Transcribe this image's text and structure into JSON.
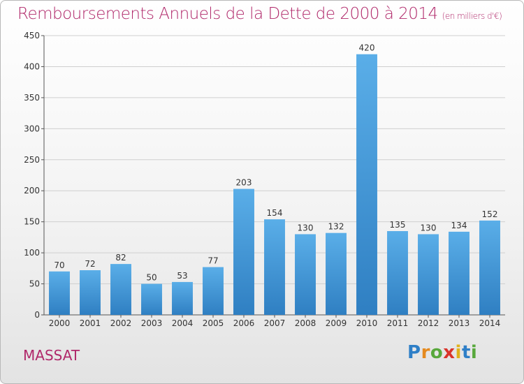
{
  "title": "Remboursements Annuels de la Dette de 2000 à 2014",
  "unit": "(en milliers d'€)",
  "commune": "MASSAT",
  "logo": {
    "letters": [
      "P",
      "r",
      "o",
      "x",
      "i",
      "t",
      "i"
    ],
    "colors": [
      "#2e7fc7",
      "#e58a1f",
      "#58a83c",
      "#d9342b",
      "#e0b21b",
      "#2e7fc7",
      "#58a83c"
    ]
  },
  "colors": {
    "bar_top": "#5aaee8",
    "bar_bottom": "#2f7fc2",
    "title": "#b0286a",
    "grid": "#cfcfcf"
  },
  "chart_data": {
    "type": "bar",
    "categories": [
      "2000",
      "2001",
      "2002",
      "2003",
      "2004",
      "2005",
      "2006",
      "2007",
      "2008",
      "2009",
      "2010",
      "2011",
      "2012",
      "2013",
      "2014"
    ],
    "values": [
      70,
      72,
      82,
      50,
      53,
      77,
      203,
      154,
      130,
      132,
      420,
      135,
      130,
      134,
      152
    ],
    "data_labels": [
      "70",
      "72",
      "82",
      "50",
      "53",
      "77",
      "203",
      "154",
      "130",
      "132",
      "420",
      "135",
      "130",
      "134",
      "152"
    ],
    "yticks": [
      "0",
      "50",
      "100",
      "150",
      "200",
      "250",
      "300",
      "350",
      "400",
      "450"
    ],
    "ylim": [
      0,
      450
    ],
    "grid": true,
    "legend": "none"
  }
}
